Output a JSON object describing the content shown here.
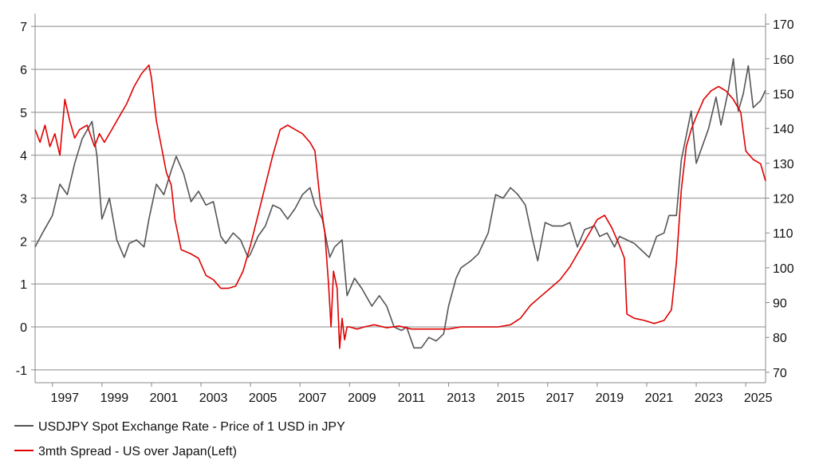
{
  "chart_data": {
    "type": "line",
    "title": "",
    "xlabel": "",
    "ylabel_left": "",
    "ylabel_right": "",
    "xlim": [
      1996.3,
      2025.8
    ],
    "ylim_left": [
      -1.3,
      7.3
    ],
    "ylim_right": [
      67,
      173
    ],
    "grid": true,
    "legend_position": "bottom-left",
    "x_ticks": [
      1997,
      1999,
      2001,
      2003,
      2005,
      2007,
      2009,
      2011,
      2013,
      2015,
      2017,
      2019,
      2021,
      2023,
      2025
    ],
    "x_tick_labels": [
      "1997",
      "1999",
      "2001",
      "2003",
      "2005",
      "2007",
      "2009",
      "2011",
      "2013",
      "2015",
      "2017",
      "2019",
      "2021",
      "2023",
      "2025"
    ],
    "y_left_ticks": [
      -1,
      0,
      1,
      2,
      3,
      4,
      5,
      6,
      7
    ],
    "y_left_tick_labels": [
      "-1",
      "0",
      "1",
      "2",
      "3",
      "4",
      "5",
      "6",
      "7"
    ],
    "y_right_ticks": [
      70,
      80,
      90,
      100,
      110,
      120,
      130,
      140,
      150,
      160,
      170
    ],
    "y_right_tick_labels": [
      "70",
      "80",
      "90",
      "100",
      "110",
      "120",
      "130",
      "140",
      "150",
      "160",
      "170"
    ],
    "series": [
      {
        "name": "USDJPY Spot Exchange Rate - Price of 1 USD in JPY",
        "axis": "right",
        "color": "#555555",
        "x": [
          1996.3,
          1996.6,
          1997.0,
          1997.3,
          1997.6,
          1997.9,
          1998.2,
          1998.6,
          1998.8,
          1999.0,
          1999.3,
          1999.6,
          1999.9,
          2000.1,
          2000.4,
          2000.7,
          2000.9,
          2001.2,
          2001.5,
          2001.8,
          2002.0,
          2002.3,
          2002.6,
          2002.9,
          2003.2,
          2003.5,
          2003.8,
          2004.0,
          2004.3,
          2004.6,
          2004.9,
          2005.0,
          2005.3,
          2005.6,
          2005.9,
          2006.2,
          2006.5,
          2006.8,
          2007.1,
          2007.4,
          2007.6,
          2007.9,
          2008.2,
          2008.4,
          2008.7,
          2008.9,
          2009.2,
          2009.5,
          2009.9,
          2010.2,
          2010.5,
          2010.8,
          2011.1,
          2011.3,
          2011.6,
          2011.9,
          2012.2,
          2012.5,
          2012.8,
          2013.0,
          2013.3,
          2013.5,
          2013.9,
          2014.2,
          2014.6,
          2014.9,
          2015.2,
          2015.5,
          2015.8,
          2016.1,
          2016.4,
          2016.6,
          2016.9,
          2017.2,
          2017.6,
          2017.9,
          2018.2,
          2018.5,
          2018.9,
          2019.1,
          2019.4,
          2019.7,
          2019.9,
          2020.2,
          2020.5,
          2020.8,
          2021.1,
          2021.4,
          2021.7,
          2021.9,
          2022.2,
          2022.4,
          2022.6,
          2022.8,
          2023.0,
          2023.2,
          2023.5,
          2023.8,
          2024.0,
          2024.3,
          2024.5,
          2024.7,
          2024.9,
          2025.1,
          2025.3,
          2025.6,
          2025.8
        ],
        "values": [
          106,
          110,
          115,
          124,
          121,
          130,
          137,
          142,
          132,
          114,
          120,
          108,
          103,
          107,
          108,
          106,
          114,
          124,
          121,
          128,
          132,
          127,
          119,
          122,
          118,
          119,
          109,
          107,
          110,
          108,
          103,
          104,
          109,
          112,
          118,
          117,
          114,
          117,
          121,
          123,
          118,
          114,
          103,
          106,
          108,
          92,
          97,
          94,
          89,
          92,
          89,
          83,
          82,
          83,
          77,
          77,
          80,
          79,
          81,
          89,
          97,
          100,
          102,
          104,
          110,
          121,
          120,
          123,
          121,
          118,
          108,
          102,
          113,
          112,
          112,
          113,
          106,
          111,
          112,
          109,
          110,
          106,
          109,
          108,
          107,
          105,
          103,
          109,
          110,
          115,
          115,
          131,
          138,
          145,
          130,
          134,
          140,
          149,
          141,
          151,
          160,
          145,
          150,
          158,
          146,
          148,
          151
        ]
      },
      {
        "name": "3mth Spread - US over Japan(Left)",
        "axis": "left",
        "color": "#e00000",
        "x": [
          1996.3,
          1996.5,
          1996.7,
          1996.9,
          1997.1,
          1997.3,
          1997.5,
          1997.7,
          1997.9,
          1998.1,
          1998.4,
          1998.7,
          1998.9,
          1999.1,
          1999.4,
          1999.7,
          2000.0,
          2000.3,
          2000.6,
          2000.9,
          2001.0,
          2001.2,
          2001.4,
          2001.6,
          2001.8,
          2001.95,
          2002.2,
          2002.6,
          2002.9,
          2003.2,
          2003.5,
          2003.8,
          2004.1,
          2004.4,
          2004.7,
          2005.0,
          2005.3,
          2005.6,
          2005.9,
          2006.2,
          2006.5,
          2006.8,
          2007.1,
          2007.4,
          2007.6,
          2007.8,
          2008.0,
          2008.15,
          2008.25,
          2008.35,
          2008.5,
          2008.6,
          2008.7,
          2008.8,
          2008.9,
          2009.0,
          2009.3,
          2009.6,
          2010.0,
          2010.5,
          2011.0,
          2011.5,
          2012.0,
          2012.5,
          2013.0,
          2013.5,
          2014.0,
          2014.5,
          2015.0,
          2015.5,
          2015.9,
          2016.3,
          2016.7,
          2017.1,
          2017.5,
          2017.9,
          2018.3,
          2018.7,
          2019.0,
          2019.3,
          2019.6,
          2019.9,
          2020.1,
          2020.2,
          2020.5,
          2020.9,
          2021.3,
          2021.7,
          2022.0,
          2022.2,
          2022.4,
          2022.6,
          2022.8,
          2023.0,
          2023.3,
          2023.6,
          2023.9,
          2024.2,
          2024.5,
          2024.8,
          2025.0,
          2025.3,
          2025.6,
          2025.8
        ],
        "values": [
          4.6,
          4.3,
          4.7,
          4.2,
          4.5,
          4.0,
          5.3,
          4.8,
          4.4,
          4.6,
          4.7,
          4.2,
          4.5,
          4.3,
          4.6,
          4.9,
          5.2,
          5.6,
          5.9,
          6.1,
          5.8,
          4.8,
          4.2,
          3.6,
          3.3,
          2.5,
          1.8,
          1.7,
          1.6,
          1.2,
          1.1,
          0.9,
          0.9,
          0.95,
          1.3,
          1.9,
          2.6,
          3.3,
          4.0,
          4.6,
          4.7,
          4.6,
          4.5,
          4.3,
          4.1,
          3.0,
          2.2,
          1.0,
          0.0,
          1.3,
          0.9,
          -0.5,
          0.2,
          -0.3,
          0.0,
          0.0,
          -0.05,
          0.0,
          0.05,
          -0.02,
          0.02,
          -0.05,
          -0.05,
          -0.05,
          -0.05,
          0.0,
          0.0,
          0.0,
          0.0,
          0.05,
          0.2,
          0.5,
          0.7,
          0.9,
          1.1,
          1.4,
          1.8,
          2.2,
          2.5,
          2.6,
          2.3,
          1.9,
          1.6,
          0.3,
          0.2,
          0.15,
          0.08,
          0.15,
          0.4,
          1.5,
          3.2,
          4.2,
          4.6,
          4.9,
          5.3,
          5.5,
          5.6,
          5.5,
          5.3,
          5.0,
          4.1,
          3.9,
          3.8,
          3.4
        ]
      }
    ]
  }
}
